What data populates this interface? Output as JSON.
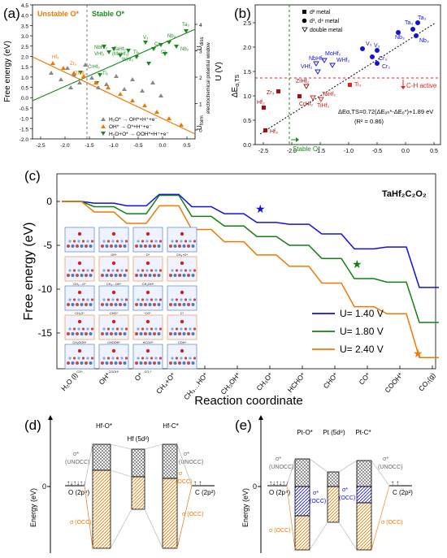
{
  "panel_a": {
    "label": "(a)",
    "unstable_label": "Unstable O*",
    "stable_label": "Stable O*",
    "y_label": "Free energy (eV)",
    "y2_label": "U (V)",
    "window_label": "electrochemical potential window",
    "u_diss": "U",
    "u_diss_sub": "diss",
    "u_form": "U",
    "u_form_sub": "form",
    "y_ticks": [
      "-2.0",
      "-1.5",
      "-1.0",
      "-0.5",
      "0.0",
      "0.5",
      "1.0",
      "1.5",
      "2.0",
      "2.5",
      "3.0",
      "3.5",
      "4.0",
      "4.5"
    ],
    "y2_ticks": [
      "0",
      "1",
      "2",
      "3",
      "4"
    ],
    "x_ticks": [
      "-2.5",
      "-2.0",
      "-1.5",
      "-1.0",
      "-0.5",
      "0.0",
      "0.5"
    ],
    "legend": [
      "H₂O* → OH*+H⁺+e⁻",
      "OH* → O*+H⁺+e⁻",
      "H₂O+O* → OOH*+H⁺+e⁻"
    ],
    "labels": [
      "Ta₃",
      "Nb₃",
      "Nb₃",
      "Cr₃",
      "Cr₂",
      "V₃",
      "NbHf₂",
      "TaHf₂",
      "VHf₂",
      "(MoHf₂)",
      "Ti₃",
      "WHf₂",
      "Hf₃",
      "Zr₃",
      "CrHf₂",
      "ZrHf₂",
      "Ti₃"
    ]
  },
  "panel_b": {
    "label": "(b)",
    "y_label": "ΔE",
    "y_label_sub": "α,TS",
    "x_ticks": [
      "-2.5",
      "-2.0",
      "-1.5",
      "-1.0",
      "-0.5",
      "0.0",
      "0.5"
    ],
    "y_ticks": [
      "0.0",
      "0.5",
      "1.0",
      "1.5",
      "2.0",
      "2.5"
    ],
    "legend": [
      "d² metal",
      "d³, d⁴ metal",
      "double metal"
    ],
    "ch_active": "C-H active",
    "stable_o": "Stable O*",
    "equation": "ΔEα,TS=0.72(ΔEₒₕ*-ΔEₒ*)+1.89 eV",
    "r2": "(R² = 0.86)",
    "point_labels": [
      "Ta₃",
      "Ta₃",
      "Nb₃",
      "Nb₃",
      "V₃",
      "V₃",
      "Cr₃",
      "Cr₂",
      "MoHf₂",
      "NbHf₂",
      "WHf₂",
      "VHf₂",
      "TaHf₂",
      "ZrHf₂",
      "Zr₃",
      "CrHf₂",
      "TiHf₂",
      "Ti₃",
      "Hf₂",
      "Hf₃"
    ]
  },
  "panel_c": {
    "label": "(c)",
    "title": "TaHf₂C₂O₂",
    "y_label": "Free energy (eV)",
    "x_label": "Reaction coordinate",
    "y_ticks": [
      "0",
      "-5",
      "-10",
      "-15"
    ],
    "steps": [
      "H₂O (l)",
      "OH*",
      "O*",
      "CH₄+O*",
      "CH₃…HO*",
      "CH₃OH*",
      "CH₃O*",
      "HCHO*",
      "CHO*",
      "CO*",
      "COOH*",
      "CO₂(g)"
    ],
    "legend": [
      {
        "label": "U= 1.40 V",
        "color": "#1010e0"
      },
      {
        "label": "U= 1.80 V",
        "color": "#108010"
      },
      {
        "label": "U= 2.40 V",
        "color": "#f07800"
      }
    ],
    "inset_labels": [
      [
        "",
        "OH*",
        "O*",
        "CH₄+O*"
      ],
      [
        "CH₃…O*",
        "CH₃…OH*",
        "CH₃OH*",
        ""
      ],
      [
        "CH₂O*",
        "CHO*",
        "CO*",
        "C*"
      ],
      [
        "CH₃OOH*",
        "CHOOH*",
        "HCOO*",
        "COH*"
      ],
      [
        "CO*",
        "COOH*",
        "CO₂*",
        ""
      ]
    ]
  },
  "panel_d": {
    "label": "(d)",
    "y_label": "Energy (eV)",
    "zero": "0",
    "col_headers": [
      "Hf-O*",
      "Hf (5d²)",
      "Hf-C*"
    ],
    "left_label": "O (2p⁴)",
    "right_label": "C (2p²)",
    "sigma_star": "σ*",
    "unocc": "(UNOCC)",
    "sigma_occ_1": "σ (OCC)",
    "sigma_occ_2": "σ (OCC)",
    "sigma_mid": "σ",
    "sigma_mid2": "(OCC)"
  },
  "panel_e": {
    "label": "(e)",
    "y_label": "Energy (eV)",
    "zero": "0",
    "col_headers": [
      "Pt-O*",
      "Pt (5d⁸)",
      "Pt-C*"
    ],
    "left_label": "O (2p⁴)",
    "right_label": "C (2p²)",
    "sigma_star": "σ*",
    "unocc": "(UNOCC)",
    "sigma_star_occ_1": "σ*",
    "occ_1": "(OCC)",
    "sigma_star_occ_2": "σ*",
    "occ_2": "(OCC)",
    "sigma_occ_1": "σ (OCC)",
    "sigma_occ_2": "σ (OCC)"
  },
  "colors": {
    "orange": "#f07800",
    "green": "#1a8a1a",
    "blue": "#1010e0",
    "red": "#e02020",
    "darkred": "#a01010",
    "gray": "#888888"
  }
}
